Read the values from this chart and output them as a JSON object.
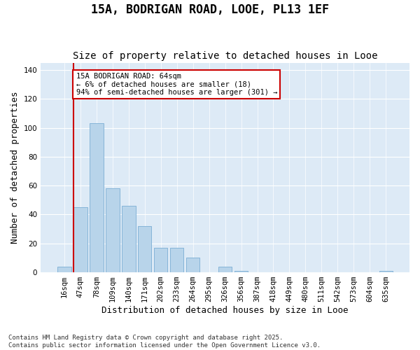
{
  "title": "15A, BODRIGAN ROAD, LOOE, PL13 1EF",
  "subtitle": "Size of property relative to detached houses in Looe",
  "xlabel": "Distribution of detached houses by size in Looe",
  "ylabel": "Number of detached properties",
  "categories": [
    "16sqm",
    "47sqm",
    "78sqm",
    "109sqm",
    "140sqm",
    "171sqm",
    "202sqm",
    "233sqm",
    "264sqm",
    "295sqm",
    "326sqm",
    "356sqm",
    "387sqm",
    "418sqm",
    "449sqm",
    "480sqm",
    "511sqm",
    "542sqm",
    "573sqm",
    "604sqm",
    "635sqm"
  ],
  "values": [
    4,
    45,
    103,
    58,
    46,
    32,
    17,
    17,
    10,
    0,
    4,
    1,
    0,
    0,
    0,
    0,
    0,
    0,
    0,
    0,
    1
  ],
  "bar_color": "#b8d4ea",
  "bar_edge_color": "#7aadd4",
  "vline_color": "#cc0000",
  "annotation_text": "15A BODRIGAN ROAD: 64sqm\n← 6% of detached houses are smaller (18)\n94% of semi-detached houses are larger (301) →",
  "annotation_box_color": "#ffffff",
  "annotation_box_edge": "#cc0000",
  "ylim": [
    0,
    145
  ],
  "yticks": [
    0,
    20,
    40,
    60,
    80,
    100,
    120,
    140
  ],
  "background_color": "#ddeaf6",
  "footer": "Contains HM Land Registry data © Crown copyright and database right 2025.\nContains public sector information licensed under the Open Government Licence v3.0.",
  "title_fontsize": 12,
  "subtitle_fontsize": 10,
  "xlabel_fontsize": 9,
  "ylabel_fontsize": 9,
  "tick_fontsize": 7.5,
  "footer_fontsize": 6.5
}
